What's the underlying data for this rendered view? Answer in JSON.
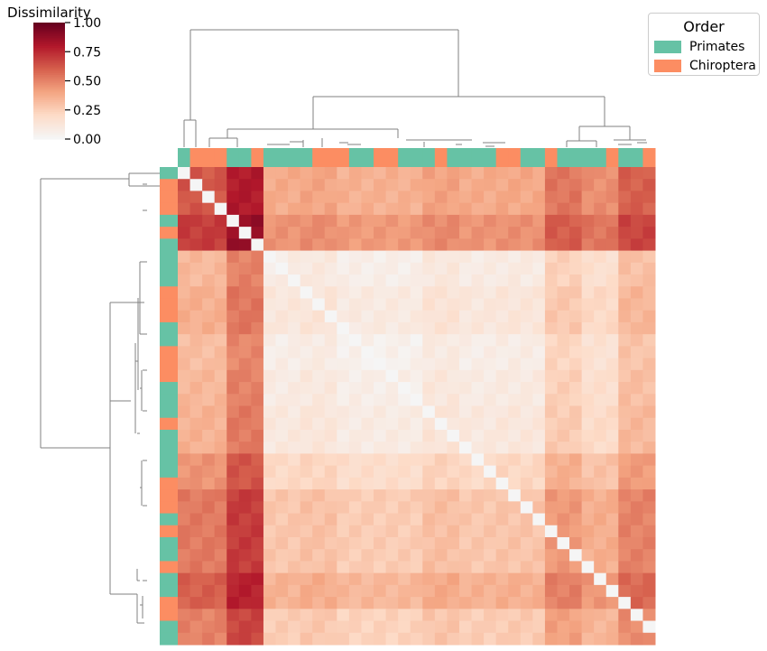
{
  "chart_data": {
    "type": "heatmap",
    "subtype": "clustermap",
    "colorbar": {
      "label": "Dissimilarity",
      "ticks": [
        "1.00",
        "0.75",
        "0.50",
        "0.25",
        "0.00"
      ],
      "range": [
        0,
        1
      ],
      "colormap": "Reds"
    },
    "legend": {
      "title": "Order",
      "placement": "top-right",
      "entries": [
        {
          "label": "Primates",
          "color": "#66c2a5"
        },
        {
          "label": "Chiroptera",
          "color": "#fc8d62"
        }
      ]
    },
    "col_colors": [
      "P",
      "C",
      "C",
      "C",
      "P",
      "P",
      "C",
      "P",
      "P",
      "P",
      "P",
      "C",
      "C",
      "C",
      "P",
      "P",
      "C",
      "C",
      "P",
      "P",
      "P",
      "C",
      "P",
      "P",
      "P",
      "P",
      "C",
      "C",
      "P",
      "P",
      "C",
      "P",
      "P",
      "P",
      "P",
      "C",
      "P",
      "P",
      "C"
    ],
    "row_colors": [
      "P",
      "C",
      "C",
      "C",
      "P",
      "C",
      "P",
      "P",
      "P",
      "P",
      "C",
      "C",
      "C",
      "P",
      "P",
      "C",
      "C",
      "C",
      "P",
      "P",
      "P",
      "C",
      "P",
      "P",
      "P",
      "P",
      "C",
      "C",
      "C",
      "P",
      "C",
      "P",
      "P",
      "C",
      "P",
      "P",
      "C",
      "C",
      "P",
      "P"
    ],
    "row_scale_dissimilarity": [
      0.65,
      0.8,
      0.05,
      0.12,
      0.02,
      0.06,
      0.1,
      0.3,
      0.45,
      0.45,
      0.6,
      0.4
    ],
    "col_scale_dissimilarity": [
      0.6,
      0.95,
      0.1,
      0.14,
      0.06,
      0.06,
      0.16,
      0.1,
      0.12,
      0.42,
      0.28,
      0.55
    ],
    "row_dendrogram": [
      [
        160,
        233,
        158,
        233
      ],
      [
        158,
        233,
        163,
        233
      ],
      [
        160,
        204,
        158,
        204
      ],
      [
        158,
        204,
        163,
        204
      ],
      [
        155,
        330,
        155,
        290
      ],
      [
        155,
        290,
        163,
        290
      ],
      [
        155,
        330,
        155,
        370
      ],
      [
        155,
        370,
        163,
        370
      ],
      [
        160,
        410,
        158,
        410
      ],
      [
        158,
        410,
        163,
        410
      ],
      [
        160,
        455,
        158,
        455
      ],
      [
        158,
        455,
        163,
        455
      ],
      [
        155,
        430,
        157,
        430
      ],
      [
        157,
        430,
        157,
        410
      ],
      [
        157,
        430,
        157,
        455
      ],
      [
        153,
        350,
        153,
        330
      ],
      [
        153,
        350,
        153,
        432
      ],
      [
        150,
        400,
        153,
        400
      ],
      [
        160,
        510,
        158,
        510
      ],
      [
        158,
        510,
        163,
        510
      ],
      [
        160,
        560,
        158,
        560
      ],
      [
        158,
        560,
        163,
        560
      ],
      [
        155,
        540,
        157,
        540
      ],
      [
        157,
        540,
        157,
        510
      ],
      [
        157,
        540,
        157,
        560
      ],
      [
        152,
        480,
        155,
        480
      ],
      [
        150,
        380,
        150,
        480
      ],
      [
        145,
        444,
        122,
        444
      ],
      [
        122,
        444,
        122,
        335
      ],
      [
        122,
        335,
        160,
        335
      ],
      [
        122,
        444,
        122,
        658
      ],
      [
        160,
        643,
        158,
        643
      ],
      [
        158,
        643,
        163,
        643
      ],
      [
        155,
        670,
        158,
        670
      ],
      [
        158,
        670,
        158,
        660
      ],
      [
        158,
        670,
        158,
        685
      ],
      [
        152,
        630,
        152,
        643
      ],
      [
        152,
        643,
        155,
        643
      ],
      [
        152,
        658,
        152,
        690
      ],
      [
        152,
        690,
        160,
        690
      ],
      [
        122,
        658,
        152,
        658
      ],
      [
        45,
        198,
        143,
        198
      ],
      [
        143,
        198,
        143,
        192
      ],
      [
        143,
        192,
        177,
        192
      ],
      [
        143,
        198,
        143,
        206
      ],
      [
        143,
        206,
        190,
        206
      ],
      [
        45,
        198,
        45,
        496
      ],
      [
        45,
        496,
        122,
        496
      ]
    ],
    "col_dendrogram": [
      [
        211,
        33,
        211,
        133
      ],
      [
        204,
        133,
        217,
        133
      ],
      [
        204,
        133,
        204,
        163
      ],
      [
        217,
        133,
        217,
        163
      ],
      [
        211,
        33,
        508,
        33
      ],
      [
        508,
        33,
        508,
        107
      ],
      [
        347,
        107,
        670,
        107
      ],
      [
        347,
        107,
        347,
        143
      ],
      [
        670,
        107,
        670,
        140
      ],
      [
        252,
        143,
        441,
        143
      ],
      [
        252,
        143,
        252,
        153
      ],
      [
        441,
        143,
        441,
        153
      ],
      [
        252,
        153,
        232,
        153
      ],
      [
        252,
        153,
        263,
        153
      ],
      [
        232,
        153,
        232,
        163
      ],
      [
        263,
        153,
        263,
        163
      ],
      [
        336,
        155,
        336,
        163
      ],
      [
        321,
        157,
        336,
        157
      ],
      [
        357,
        153,
        357,
        163
      ],
      [
        296,
        160,
        321,
        160
      ],
      [
        376,
        158,
        386,
        158
      ],
      [
        385,
        160,
        400,
        160
      ],
      [
        450,
        155,
        523,
        155
      ],
      [
        470,
        157,
        470,
        163
      ],
      [
        505,
        160,
        512,
        160
      ],
      [
        535,
        158,
        560,
        158
      ],
      [
        538,
        162,
        548,
        162
      ],
      [
        642,
        140,
        698,
        140
      ],
      [
        642,
        140,
        642,
        156
      ],
      [
        698,
        140,
        698,
        155
      ],
      [
        628,
        156,
        661,
        156
      ],
      [
        628,
        156,
        628,
        163
      ],
      [
        661,
        156,
        661,
        163
      ],
      [
        680,
        155,
        716,
        155
      ],
      [
        685,
        160,
        700,
        160
      ],
      [
        706,
        158,
        717,
        158
      ]
    ]
  }
}
